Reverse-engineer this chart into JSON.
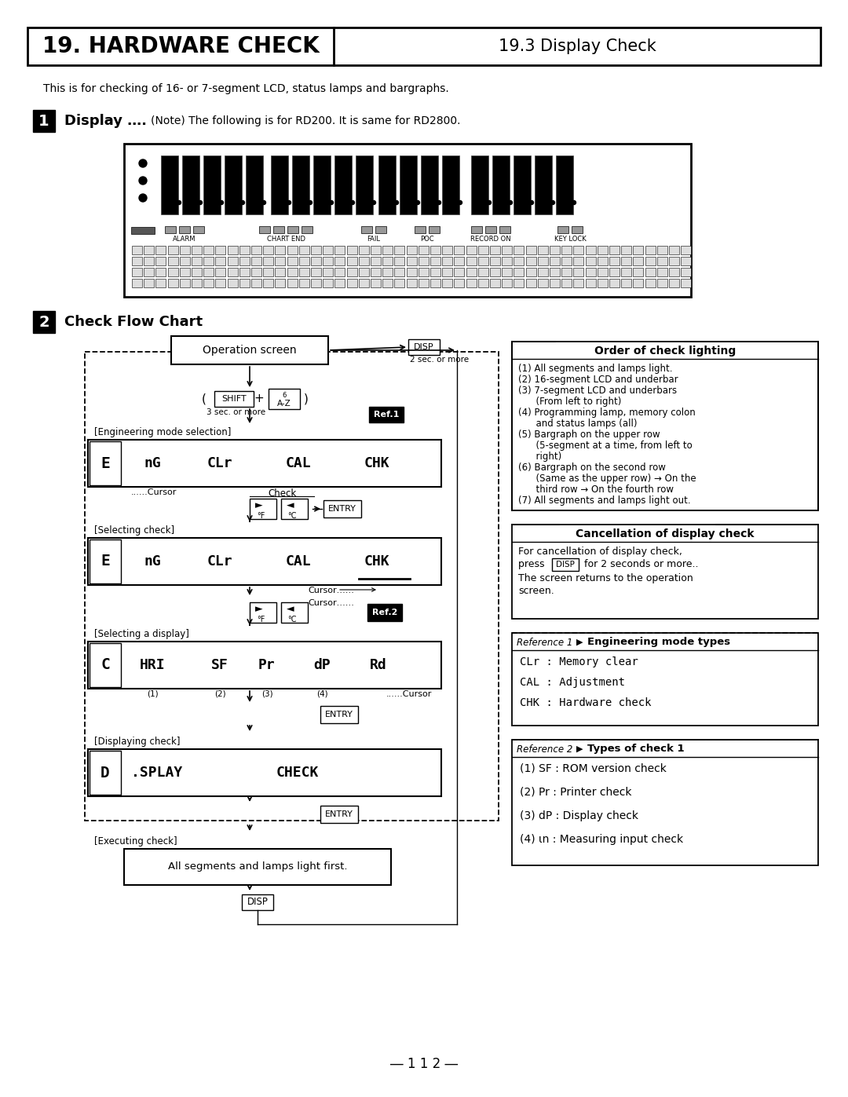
{
  "title_left": "19. HARDWARE CHECK",
  "title_right": "19.3 Display Check",
  "intro_text": "This is for checking of 16- or 7-segment LCD, status lamps and bargraphs.",
  "section1_note": "(Note) The following is for RD200. It is same for RD2800.",
  "section2_title": "Check Flow Chart",
  "order_title": "Order of check lighting",
  "order_items": [
    "(1) All segments and lamps light.",
    "(2) 16-segment LCD and underbar",
    "(3) 7-segment LCD and underbars",
    "      (From left to right)",
    "(4) Programming lamp, memory colon",
    "      and status lamps (all)",
    "(5) Bargraph on the upper row",
    "      (5-segment at a time, from left to",
    "      right)",
    "(6) Bargraph on the second row",
    "      (Same as the upper row) → On the",
    "      third row → On the fourth row",
    "(7) All segments and lamps light out."
  ],
  "cancel_title": "Cancellation of display check",
  "cancel_line1": "For cancellation of display check,",
  "cancel_line2": " for 2 seconds or more..",
  "cancel_line3": "The screen returns to the operation",
  "cancel_line4": "screen.",
  "ref1_label": "Reference 1",
  "ref1_title": "Engineering mode types",
  "ref1_items": [
    "CLr : Memory clear",
    "CAL : Adjustment",
    "CHK : Hardware check"
  ],
  "ref2_label": "Reference 2",
  "ref2_title": "Types of check 1",
  "ref2_items": [
    "(1) SF : ROM version check",
    "(2) Pr : Printer check",
    "(3) dP : Display check",
    "(4) ιn : Measuring input check"
  ],
  "page_num": "― 1 1 2 ―",
  "bg_color": "#ffffff"
}
